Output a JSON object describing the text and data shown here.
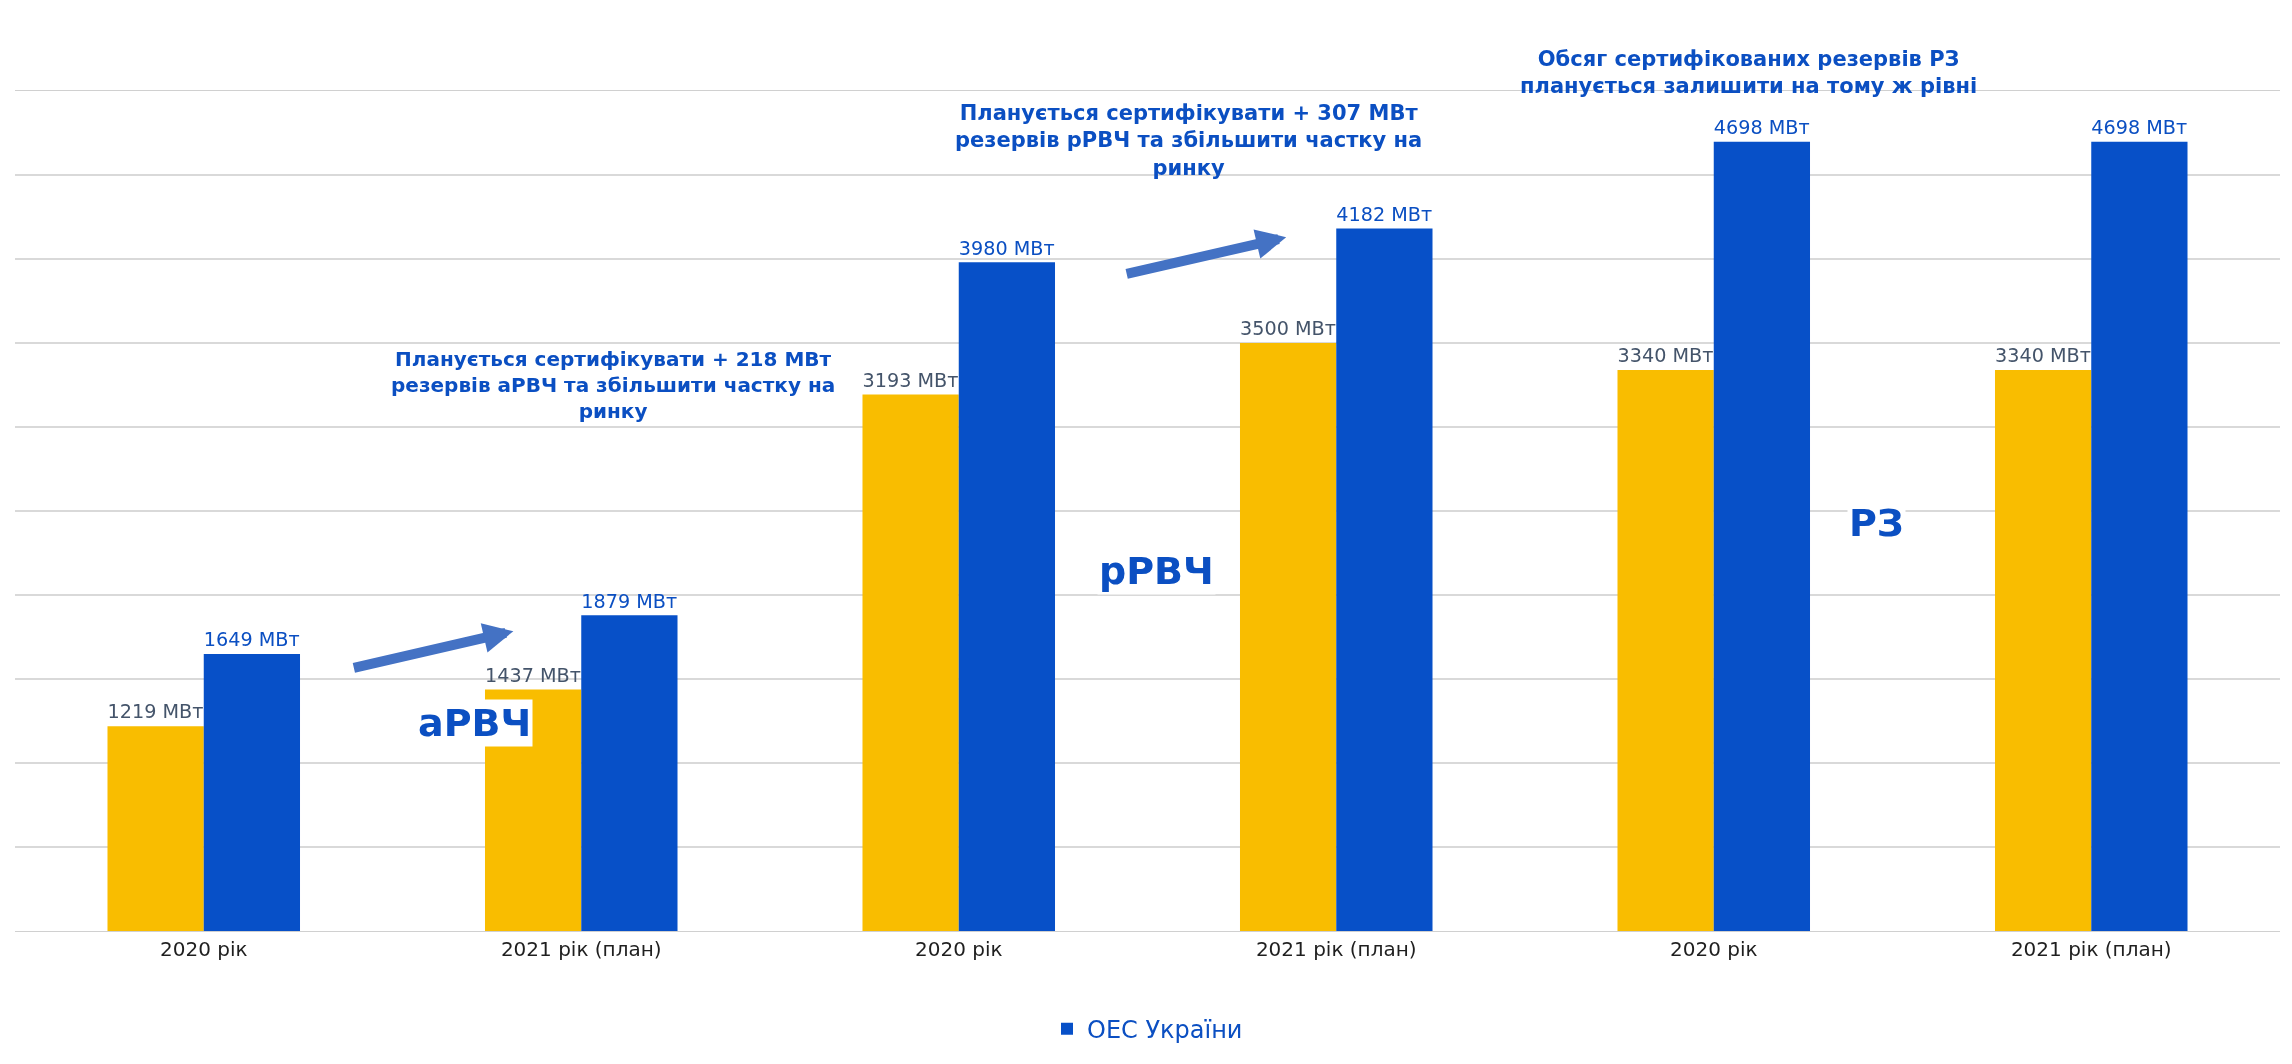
{
  "chart_data": {
    "type": "bar",
    "categories": [
      "2020 рік",
      "2021 рік (план)",
      "2020 рік",
      "2021 рік (план)",
      "2020 рік",
      "2021 рік (план)"
    ],
    "series": [
      {
        "color": "#f9bd00",
        "values": [
          1219,
          1437,
          3193,
          3500,
          3340,
          3340
        ],
        "value_labels": [
          "1219 МВт",
          "1437 МВт",
          "3193 МВт",
          "3500 МВт",
          "3340 МВт",
          "3340 МВт"
        ]
      },
      {
        "name": "ОЕС України",
        "color": "#0750c8",
        "values": [
          1649,
          1879,
          3980,
          4182,
          4698,
          4698
        ],
        "value_labels": [
          "1649 МВт",
          "1879 МВт",
          "3980 МВт",
          "4182 МВт",
          "4698 МВт",
          "4698 МВт"
        ]
      }
    ],
    "ylim": [
      0,
      5000
    ],
    "yticks": [
      {
        "value": 0,
        "label": null
      },
      {
        "value": 500,
        "label": null
      },
      {
        "value": 1000,
        "label": null
      },
      {
        "value": 1500,
        "label": null
      },
      {
        "value": 2000,
        "label": null
      },
      {
        "value": 2500,
        "label": null
      },
      {
        "value": 3000,
        "label": null
      },
      {
        "value": 3500,
        "label": null
      },
      {
        "value": 4000,
        "label": null
      },
      {
        "value": 4500,
        "label": null
      },
      {
        "value": 5000,
        "label": null
      }
    ],
    "tick_labels": "x",
    "grid": "y",
    "legend": "bottom",
    "annotations": [
      "Планується сертифікувати + 218 МВт\nрезервів аРВЧ та збільшити частку на\nринку",
      "Планується сертифікувати + 307 МВт\nрезервів рРВЧ та збільшити частку на\nринку",
      "Обсяг сертифікованих резервів РЗ\nпланується залишити на тому ж рівні",
      "аРВЧ",
      "рРВЧ",
      "РЗ"
    ]
  }
}
